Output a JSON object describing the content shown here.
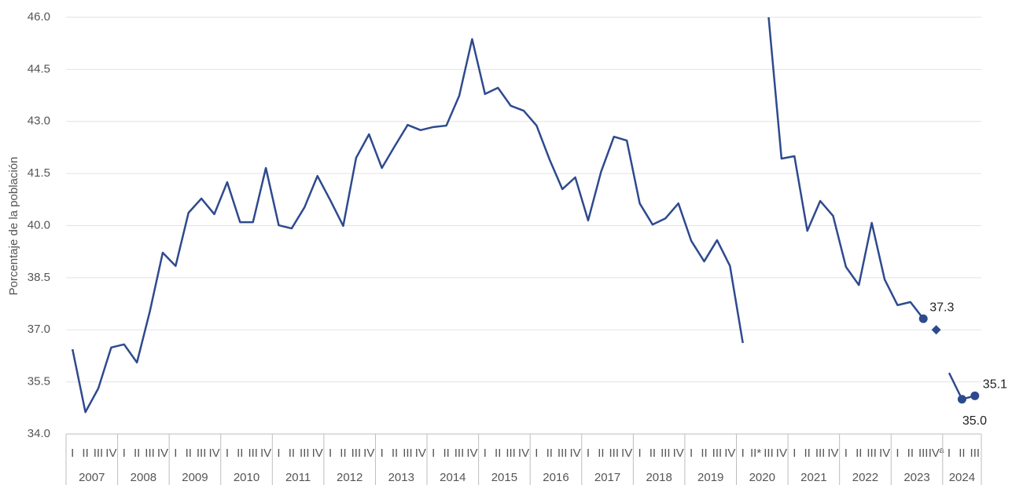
{
  "chart_data": {
    "type": "line",
    "y_label": "Porcentaje de la población",
    "categories": [
      "I",
      "II",
      "III",
      "IV",
      "I",
      "II",
      "III",
      "IV",
      "I",
      "II",
      "III",
      "IV",
      "I",
      "II",
      "III",
      "IV",
      "I",
      "II",
      "III",
      "IV",
      "I",
      "II",
      "III",
      "IV",
      "I",
      "II",
      "III",
      "IV",
      "I",
      "II",
      "III",
      "IV",
      "I",
      "II",
      "III",
      "IV",
      "I",
      "II",
      "III",
      "IV",
      "I",
      "II",
      "III",
      "IV",
      "I",
      "II",
      "III",
      "IV",
      "I",
      "II",
      "III",
      "IV",
      "I",
      "II*",
      "III",
      "IV",
      "I",
      "II",
      "III",
      "IV",
      "I",
      "II",
      "III",
      "IV",
      "I",
      "II",
      "III",
      "IVª",
      "I",
      "II",
      "III"
    ],
    "years": [
      "2007",
      "2008",
      "2009",
      "2010",
      "2011",
      "2012",
      "2013",
      "2014",
      "2015",
      "2016",
      "2017",
      "2018",
      "2019",
      "2020",
      "2021",
      "2022",
      "2023",
      "2024"
    ],
    "series": [
      {
        "color": "#2e4a8e",
        "marker": "dot",
        "values": [
          36.44,
          34.63,
          35.31,
          36.49,
          36.58,
          36.06,
          37.53,
          39.22,
          38.84,
          40.37,
          40.78,
          40.33,
          41.25,
          40.1,
          40.1,
          41.66,
          40.01,
          39.92,
          40.53,
          41.43,
          40.73,
          39.99,
          41.95,
          42.63,
          41.66,
          42.29,
          42.9,
          42.75,
          42.84,
          42.88,
          43.74,
          45.37,
          43.79,
          43.97,
          43.45,
          43.31,
          42.88,
          41.91,
          41.05,
          41.39,
          40.15,
          41.55,
          42.56,
          42.45,
          40.64,
          40.03,
          40.21,
          40.64,
          39.56,
          38.97,
          39.58,
          38.84,
          36.62,
          null,
          46.0,
          41.93,
          42.0,
          39.85,
          40.71,
          40.28,
          38.81,
          38.29,
          40.08,
          38.45,
          37.71,
          37.8,
          37.32,
          null,
          35.76,
          35.0,
          35.1
        ],
        "value_labels": [
          null,
          null,
          null,
          null,
          null,
          null,
          null,
          null,
          null,
          null,
          null,
          null,
          null,
          null,
          null,
          null,
          null,
          null,
          null,
          null,
          null,
          null,
          null,
          null,
          null,
          null,
          null,
          null,
          null,
          null,
          null,
          null,
          null,
          null,
          null,
          null,
          null,
          null,
          null,
          null,
          null,
          null,
          null,
          null,
          null,
          null,
          null,
          null,
          null,
          null,
          null,
          null,
          null,
          null,
          null,
          null,
          null,
          null,
          null,
          null,
          null,
          null,
          null,
          null,
          null,
          null,
          "37.3",
          null,
          null,
          "35.0",
          "35.1"
        ]
      },
      {
        "color": "#2e4a8e",
        "marker": "diamond",
        "values": [
          null,
          null,
          null,
          null,
          null,
          null,
          null,
          null,
          null,
          null,
          null,
          null,
          null,
          null,
          null,
          null,
          null,
          null,
          null,
          null,
          null,
          null,
          null,
          null,
          null,
          null,
          null,
          null,
          null,
          null,
          null,
          null,
          null,
          null,
          null,
          null,
          null,
          null,
          null,
          null,
          null,
          null,
          null,
          null,
          null,
          null,
          null,
          null,
          null,
          null,
          null,
          null,
          null,
          null,
          null,
          null,
          null,
          null,
          null,
          null,
          null,
          null,
          null,
          null,
          null,
          null,
          null,
          37.0,
          null,
          null,
          null
        ]
      }
    ],
    "ylim": [
      34,
      46
    ],
    "yticks": [
      {
        "value": 34,
        "label": "34.0"
      },
      35.5,
      {
        "value": 37,
        "label": "37.0"
      },
      38.5,
      {
        "value": 40,
        "label": "40.0"
      },
      41.5,
      {
        "value": 43,
        "label": "43.0"
      },
      44.5,
      {
        "value": 46,
        "label": "46.0"
      }
    ],
    "grid": true
  }
}
